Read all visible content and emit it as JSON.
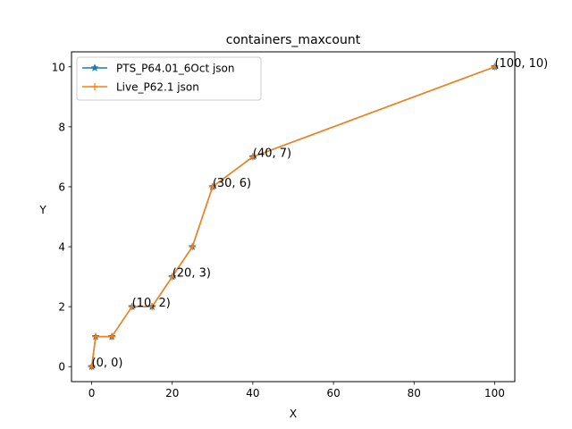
{
  "chart_data": {
    "type": "line",
    "title": "containers_maxcount",
    "xlabel": "X",
    "ylabel": "Y",
    "xlim": [
      -5,
      105
    ],
    "ylim": [
      -0.5,
      10.5
    ],
    "xticks": [
      0,
      20,
      40,
      60,
      80,
      100
    ],
    "yticks": [
      0,
      2,
      4,
      6,
      8,
      10
    ],
    "grid": false,
    "legend_position": "upper left",
    "series": [
      {
        "name": "PTS_P64.01_6Oct json",
        "color": "#1f77b4",
        "marker": "star",
        "x": [
          0,
          1,
          5,
          10,
          15,
          20,
          25,
          30,
          40,
          100
        ],
        "y": [
          0,
          1,
          1,
          2,
          2,
          3,
          4,
          6,
          7,
          10
        ]
      },
      {
        "name": "Live_P62.1 json",
        "color": "#ff7f0e",
        "marker": "plus",
        "x": [
          0,
          1,
          5,
          10,
          15,
          20,
          25,
          30,
          40,
          100
        ],
        "y": [
          0,
          1,
          1,
          2,
          2,
          3,
          4,
          6,
          7,
          10
        ]
      }
    ],
    "annotations": [
      {
        "text": "(0, 0)",
        "x": 0,
        "y": 0
      },
      {
        "text": "(10, 2)",
        "x": 10,
        "y": 2
      },
      {
        "text": "(20, 3)",
        "x": 20,
        "y": 3
      },
      {
        "text": "(30, 6)",
        "x": 30,
        "y": 6
      },
      {
        "text": "(40, 7)",
        "x": 40,
        "y": 7
      },
      {
        "text": "(100, 10)",
        "x": 100,
        "y": 10
      }
    ]
  }
}
